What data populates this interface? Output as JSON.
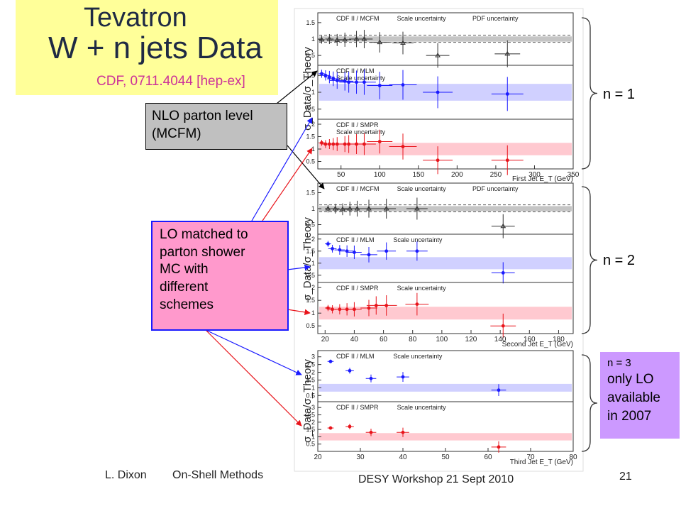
{
  "slide": {
    "title_line1": "Tevatron",
    "title_line2": "W + n jets Data",
    "reference": "CDF, 0711.4044 [hep-ex]",
    "nlo_label": [
      "NLO parton level",
      "(MCFM)"
    ],
    "lo_label": [
      "LO matched to",
      "parton shower",
      "MC with",
      "different",
      "schemes"
    ],
    "n3_label": [
      "n = 3",
      "only LO",
      "available",
      "in 2007"
    ],
    "brace_n1": "n = 1",
    "brace_n2": "n = 2",
    "footer_author": "L. Dixon",
    "footer_talk": "On-Shell Methods",
    "footer_event": "DESY Workshop   21 Sept 2010",
    "page_number": "21"
  },
  "colors": {
    "title_bg": "#ffff99",
    "nlo_bg": "#c0c0c0",
    "lo_bg": "#ff99cc",
    "n3_bg": "#cc99ff",
    "mcfm": "#333333",
    "mlm": "#1a1aff",
    "smpr": "#e8141b",
    "mlm_band": "#c8c8ff",
    "smpr_band": "#ffc0c8"
  },
  "chart_data": [
    {
      "type": "scatter",
      "xlabel": "First Jet E_T (GeV)",
      "ylabel": "σ_Data/σ_Theory",
      "x_ticks": [
        "50",
        "100",
        "150",
        "200",
        "250",
        "300",
        "350"
      ],
      "panels": [
        {
          "legend": [
            "CDF II / MCFM",
            "Scale uncertainty",
            "PDF uncertainty"
          ],
          "y_ticks": [
            "0.5",
            "1",
            "1.5"
          ],
          "series": [
            {
              "name": "CDF II / MCFM",
              "x": [
                25,
                35,
                45,
                55,
                70,
                80,
                100,
                130,
                175,
                265
              ],
              "y": [
                0.98,
                1.0,
                0.97,
                0.98,
                1.0,
                1.0,
                0.9,
                0.88,
                0.5,
                0.55
              ]
            }
          ]
        },
        {
          "legend": [
            "CDF II / MLM",
            "Scale uncertainty"
          ],
          "y_ticks": [
            "0.5",
            "1",
            "1.5"
          ],
          "series": [
            {
              "name": "CDF II / MLM",
              "x": [
                25,
                30,
                35,
                40,
                45,
                55,
                60,
                70,
                80,
                100,
                130,
                175,
                265
              ],
              "y": [
                1.55,
                1.5,
                1.45,
                1.4,
                1.35,
                1.33,
                1.3,
                1.3,
                1.3,
                1.2,
                1.22,
                1.0,
                0.95
              ]
            }
          ]
        },
        {
          "legend": [
            "CDF II / SMPR",
            "Scale uncertainty"
          ],
          "y_ticks": [
            "0.5",
            "1",
            "1.5",
            "2"
          ],
          "series": [
            {
              "name": "CDF II / SMPR",
              "x": [
                25,
                30,
                35,
                40,
                45,
                55,
                60,
                70,
                80,
                100,
                130,
                175,
                265
              ],
              "y": [
                1.25,
                1.2,
                1.2,
                1.2,
                1.2,
                1.2,
                1.2,
                1.2,
                1.2,
                1.3,
                1.1,
                0.55,
                0.55
              ]
            }
          ]
        }
      ]
    },
    {
      "type": "scatter",
      "xlabel": "Second Jet E_T (GeV)",
      "ylabel": "σ_Data/σ_Theory",
      "x_ticks": [
        "20",
        "40",
        "60",
        "80",
        "100",
        "120",
        "140",
        "160",
        "180"
      ],
      "panels": [
        {
          "legend": [
            "CDF II / MCFM",
            "Scale uncertainty",
            "PDF uncertainty"
          ],
          "y_ticks": [
            "0.5",
            "1",
            "1.5"
          ],
          "series": [
            {
              "name": "CDF II / MCFM",
              "x": [
                22,
                27,
                32,
                37,
                42,
                50,
                62,
                83,
                142
              ],
              "y": [
                1.0,
                1.0,
                0.98,
                1.0,
                1.0,
                1.0,
                1.0,
                1.0,
                0.45
              ]
            }
          ]
        },
        {
          "legend": [
            "CDF II / MLM",
            "Scale uncertainty"
          ],
          "y_ticks": [
            "0.5",
            "1",
            "1.5",
            "2"
          ],
          "series": [
            {
              "name": "CDF II / MLM",
              "x": [
                22,
                25,
                30,
                35,
                40,
                50,
                62,
                83,
                142
              ],
              "y": [
                1.8,
                1.6,
                1.55,
                1.5,
                1.45,
                1.35,
                1.5,
                1.5,
                0.6
              ]
            }
          ]
        },
        {
          "legend": [
            "CDF II / SMPR",
            "Scale uncertainty"
          ],
          "y_ticks": [
            "0.5",
            "1",
            "1.5",
            "2"
          ],
          "series": [
            {
              "name": "CDF II / SMPR",
              "x": [
                22,
                25,
                30,
                35,
                40,
                50,
                55,
                62,
                83,
                142
              ],
              "y": [
                1.2,
                1.15,
                1.15,
                1.15,
                1.15,
                1.2,
                1.3,
                1.3,
                1.35,
                0.5
              ]
            }
          ]
        }
      ]
    },
    {
      "type": "scatter",
      "xlabel": "Third Jet E_T (GeV)",
      "ylabel": "σ_Data/σ_Theory",
      "x_ticks": [
        "20",
        "30",
        "40",
        "50",
        "60",
        "70",
        "80"
      ],
      "panels": [
        {
          "legend": [
            "CDF II / MLM",
            "Scale uncertainty"
          ],
          "y_ticks": [
            "0.5",
            "1",
            "1.5",
            "2",
            "2.5",
            "3"
          ],
          "series": [
            {
              "name": "CDF II / MLM",
              "x": [
                23,
                27.5,
                32.5,
                40,
                62.5
              ],
              "y": [
                2.7,
                2.1,
                1.6,
                1.7,
                0.85
              ]
            }
          ]
        },
        {
          "legend": [
            "CDF II / SMPR",
            "Scale uncertainty"
          ],
          "y_ticks": [
            "0.5",
            "1",
            "1.5",
            "2",
            "2.5",
            "3"
          ],
          "series": [
            {
              "name": "CDF II / SMPR",
              "x": [
                23,
                27.5,
                32.5,
                40,
                62.5
              ],
              "y": [
                1.6,
                1.7,
                1.3,
                1.3,
                0.3
              ]
            }
          ]
        }
      ]
    }
  ]
}
